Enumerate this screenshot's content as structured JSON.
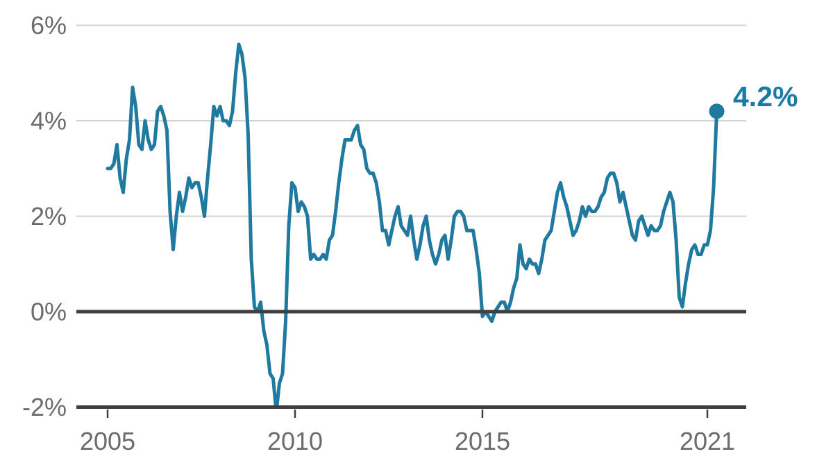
{
  "chart_data": {
    "type": "line",
    "title": "",
    "unit": "%",
    "x_start": "Jan 2005",
    "x_end": "Apr 2021",
    "points_per_year": 12,
    "ylim": [
      -2,
      6
    ],
    "grid": "horizontal-only",
    "y_ticks": [
      {
        "label": "6%",
        "value": 6
      },
      {
        "label": "4%",
        "value": 4
      },
      {
        "label": "2%",
        "value": 2
      },
      {
        "label": "0%",
        "value": 0
      },
      {
        "label": "-2%",
        "value": -2
      }
    ],
    "x_ticks": [
      {
        "label": "2005",
        "year": 2005
      },
      {
        "label": "2010",
        "year": 2010
      },
      {
        "label": "2015",
        "year": 2015
      },
      {
        "label": "2021",
        "year": 2021
      }
    ],
    "values": [
      3.0,
      3.0,
      3.1,
      3.5,
      2.8,
      2.5,
      3.2,
      3.6,
      4.7,
      4.3,
      3.5,
      3.4,
      4.0,
      3.6,
      3.4,
      3.5,
      4.2,
      4.3,
      4.1,
      3.8,
      2.1,
      1.3,
      2.0,
      2.5,
      2.1,
      2.4,
      2.8,
      2.6,
      2.7,
      2.7,
      2.4,
      2.0,
      2.8,
      3.5,
      4.3,
      4.1,
      4.3,
      4.0,
      4.0,
      3.9,
      4.2,
      5.0,
      5.6,
      5.4,
      4.9,
      3.7,
      1.1,
      0.1,
      0.0,
      0.2,
      -0.4,
      -0.7,
      -1.3,
      -1.4,
      -2.1,
      -1.5,
      -1.3,
      -0.2,
      1.8,
      2.7,
      2.6,
      2.1,
      2.3,
      2.2,
      2.0,
      1.1,
      1.2,
      1.1,
      1.1,
      1.2,
      1.1,
      1.5,
      1.6,
      2.1,
      2.7,
      3.2,
      3.6,
      3.6,
      3.6,
      3.8,
      3.9,
      3.5,
      3.4,
      3.0,
      2.9,
      2.9,
      2.7,
      2.3,
      1.7,
      1.7,
      1.4,
      1.7,
      2.0,
      2.2,
      1.8,
      1.7,
      1.6,
      2.0,
      1.5,
      1.1,
      1.4,
      1.8,
      2.0,
      1.5,
      1.2,
      1.0,
      1.2,
      1.5,
      1.6,
      1.1,
      1.5,
      2.0,
      2.1,
      2.1,
      2.0,
      1.7,
      1.7,
      1.7,
      1.3,
      0.8,
      -0.1,
      0.0,
      -0.1,
      -0.2,
      0.0,
      0.1,
      0.2,
      0.2,
      0.0,
      0.2,
      0.5,
      0.7,
      1.4,
      1.0,
      0.9,
      1.1,
      1.0,
      1.0,
      0.8,
      1.1,
      1.5,
      1.6,
      1.7,
      2.1,
      2.5,
      2.7,
      2.4,
      2.2,
      1.9,
      1.6,
      1.7,
      1.9,
      2.2,
      2.0,
      2.2,
      2.1,
      2.1,
      2.2,
      2.4,
      2.5,
      2.8,
      2.9,
      2.9,
      2.7,
      2.3,
      2.5,
      2.2,
      1.9,
      1.6,
      1.5,
      1.9,
      2.0,
      1.8,
      1.6,
      1.8,
      1.7,
      1.7,
      1.8,
      2.1,
      2.3,
      2.5,
      2.3,
      1.5,
      0.3,
      0.1,
      0.6,
      1.0,
      1.3,
      1.4,
      1.2,
      1.2,
      1.4,
      1.4,
      1.7,
      2.6,
      4.2
    ],
    "end_label": "4.2%",
    "end_value": 4.2,
    "colors": {
      "line": "#20799f",
      "annotation": "#1b7aa6",
      "axis": "#3f3f3f",
      "grid": "#d3d3d3",
      "label": "#6b6b6b"
    }
  }
}
